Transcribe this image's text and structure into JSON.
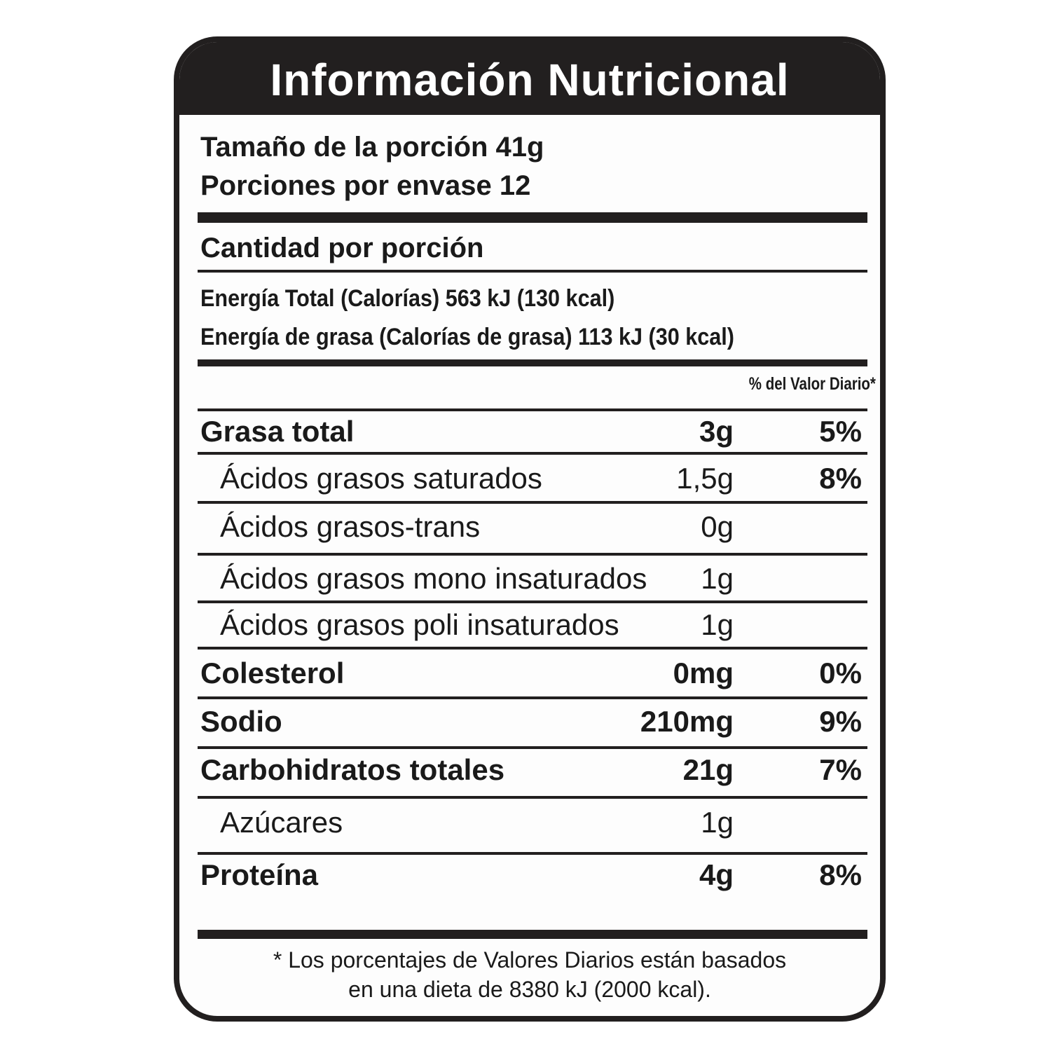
{
  "title": "Información Nutricional",
  "serving": [
    "Tamaño de la porción 41g",
    "Porciones por envase 12"
  ],
  "amount_header": "Cantidad por porción",
  "energy": [
    "Energía Total (Calorías) 563 kJ (130 kcal)",
    "Energía de grasa (Calorías de grasa) 113 kJ (30 kcal)"
  ],
  "dv_header": "% del Valor Diario*",
  "rows": [
    {
      "name": "Grasa total",
      "amount": "3g",
      "dv": "5%",
      "sub_rows": [
        {
          "name": "Ácidos grasos saturados",
          "amount": "1,5g",
          "dv": "8%"
        },
        {
          "name": "Ácidos grasos-trans",
          "amount": "0g"
        },
        {
          "name": "Ácidos grasos mono insaturados",
          "amount": "1g"
        },
        {
          "name": "Ácidos grasos poli insaturados",
          "amount": "1g"
        }
      ]
    },
    {
      "name": "Colesterol",
      "amount": "0mg",
      "dv": "0%"
    },
    {
      "name": "Sodio",
      "amount": "210mg",
      "dv": "9%"
    },
    {
      "name": "Carbohidratos totales",
      "amount": "21g",
      "dv": "7%",
      "sub_rows": [
        {
          "name": "Azúcares",
          "amount": "1g"
        }
      ]
    },
    {
      "name": "Proteína",
      "amount": "4g",
      "dv": "8%"
    }
  ],
  "footnote": [
    "* Los porcentajes de Valores Diarios están basados",
    "en una dieta de 8380 kJ (2000 kcal)."
  ]
}
